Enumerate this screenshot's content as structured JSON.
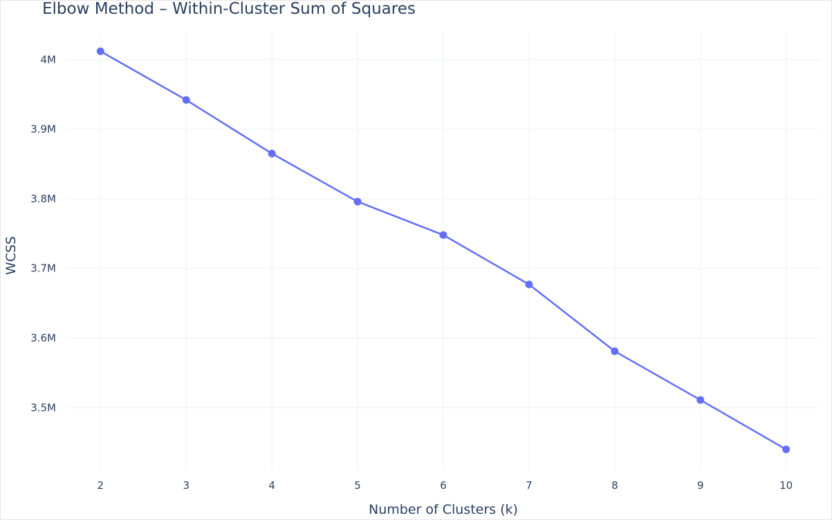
{
  "chart_data": {
    "type": "line",
    "title": "Elbow Method – Within-Cluster Sum of Squares",
    "xlabel": "Number of Clusters (k)",
    "ylabel": "WCSS",
    "x": [
      2,
      3,
      4,
      5,
      6,
      7,
      8,
      9,
      10
    ],
    "y": [
      4012000,
      3942000,
      3865000,
      3796000,
      3748000,
      3677000,
      3581000,
      3511000,
      3440000
    ],
    "xticks": [
      "2",
      "3",
      "4",
      "5",
      "6",
      "7",
      "8",
      "9",
      "10"
    ],
    "yticks": [
      {
        "value": 3500000,
        "label": "3.5M"
      },
      {
        "value": 3600000,
        "label": "3.6M"
      },
      {
        "value": 3700000,
        "label": "3.7M"
      },
      {
        "value": 3800000,
        "label": "3.8M"
      },
      {
        "value": 3900000,
        "label": "3.9M"
      },
      {
        "value": 4000000,
        "label": "4M"
      }
    ],
    "xlim": [
      1.61,
      10.39
    ],
    "ylim": [
      3411000,
      4041000
    ],
    "grid": true,
    "line_color": "#636efa"
  }
}
